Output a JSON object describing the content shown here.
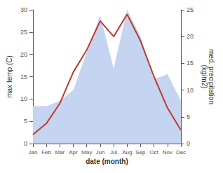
{
  "chart_data": {
    "type": "line",
    "categories": [
      "Jan",
      "Feb",
      "Mar",
      "Apr",
      "May",
      "Jun",
      "Jul",
      "Aug",
      "Sep",
      "Oct",
      "Nov",
      "Dec"
    ],
    "series": [
      {
        "type": "area",
        "axis": "y2",
        "color": "#c5d4f0",
        "values": [
          7,
          7,
          8,
          10,
          17,
          24,
          14,
          25,
          20,
          12,
          13,
          8
        ]
      },
      {
        "type": "line",
        "color": "#c0392b",
        "values": [
          2,
          4.5,
          9,
          16,
          21,
          27.5,
          24,
          29,
          23,
          15,
          8,
          3
        ]
      }
    ],
    "xlabel": "date (month)",
    "ylabel": "max temp (C)",
    "y2label": "med. precipitation\n(kg/m2)",
    "ylim": [
      0,
      30
    ],
    "yticks": [
      0,
      5,
      10,
      15,
      20,
      25,
      30
    ],
    "y2lim": [
      0,
      25
    ],
    "y2ticks": [
      0,
      5,
      10,
      15,
      20,
      25
    ],
    "grid": false
  }
}
